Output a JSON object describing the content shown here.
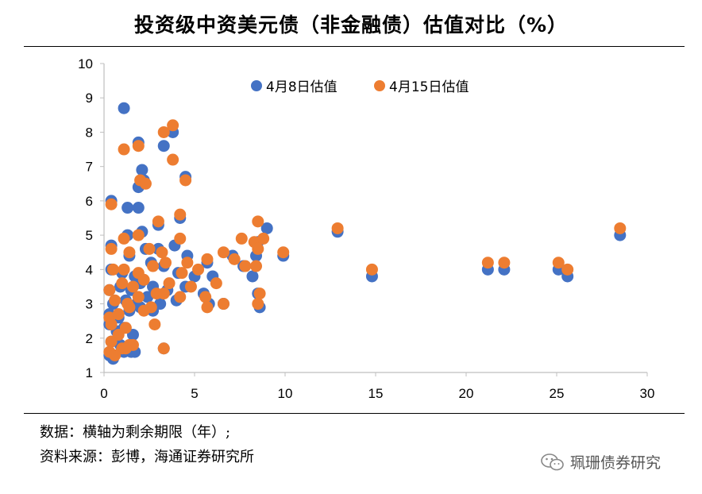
{
  "title": "投资级中资美元债（非金融债）估值对比（%）",
  "notes": {
    "data_note": "数据：横轴为剩余期限（年）;",
    "source_note": "资料来源：彭博，海通证券研究所"
  },
  "watermark": {
    "text": "珮珊债券研究",
    "icon": "wechat-icon"
  },
  "chart_data": {
    "type": "scatter",
    "title": "投资级中资美元债（非金融债）估值对比（%）",
    "xlim": [
      0,
      30
    ],
    "ylim": [
      1,
      10
    ],
    "x_ticks": [
      "0",
      "5",
      "10",
      "15",
      "20",
      "25",
      "30"
    ],
    "y_ticks": [
      "1",
      "2",
      "3",
      "4",
      "5",
      "6",
      "7",
      "8",
      "9",
      "10"
    ],
    "grid": false,
    "legend_position": "top",
    "series": [
      {
        "name": "4月8日估值",
        "color": "#4472C4",
        "points": [
          [
            1.1,
            8.7
          ],
          [
            3.8,
            8.0
          ],
          [
            3.3,
            7.6
          ],
          [
            1.9,
            7.7
          ],
          [
            2.1,
            6.9
          ],
          [
            2.2,
            6.6
          ],
          [
            1.9,
            6.4
          ],
          [
            4.5,
            6.7
          ],
          [
            0.4,
            6.0
          ],
          [
            1.3,
            5.8
          ],
          [
            1.9,
            5.8
          ],
          [
            4.2,
            5.5
          ],
          [
            3.0,
            5.3
          ],
          [
            1.3,
            5.0
          ],
          [
            2.1,
            5.1
          ],
          [
            0.4,
            4.7
          ],
          [
            1.4,
            4.4
          ],
          [
            2.3,
            4.6
          ],
          [
            3.0,
            4.6
          ],
          [
            3.9,
            4.7
          ],
          [
            4.6,
            4.4
          ],
          [
            5.7,
            4.2
          ],
          [
            0.4,
            4.0
          ],
          [
            1.0,
            3.9
          ],
          [
            1.7,
            3.8
          ],
          [
            2.6,
            4.2
          ],
          [
            3.3,
            4.1
          ],
          [
            4.1,
            3.9
          ],
          [
            5.0,
            3.8
          ],
          [
            6.0,
            3.8
          ],
          [
            0.3,
            3.4
          ],
          [
            0.9,
            3.5
          ],
          [
            1.5,
            3.4
          ],
          [
            2.0,
            3.6
          ],
          [
            2.7,
            3.5
          ],
          [
            3.5,
            3.4
          ],
          [
            4.5,
            3.5
          ],
          [
            5.5,
            3.3
          ],
          [
            0.5,
            3.0
          ],
          [
            1.2,
            3.1
          ],
          [
            1.8,
            3.0
          ],
          [
            2.4,
            3.2
          ],
          [
            3.1,
            3.0
          ],
          [
            4.0,
            3.1
          ],
          [
            5.8,
            3.0
          ],
          [
            0.3,
            2.7
          ],
          [
            0.8,
            2.6
          ],
          [
            1.4,
            2.8
          ],
          [
            2.0,
            2.9
          ],
          [
            2.7,
            2.8
          ],
          [
            0.3,
            2.4
          ],
          [
            0.7,
            2.2
          ],
          [
            1.1,
            2.3
          ],
          [
            1.6,
            2.1
          ],
          [
            0.4,
            1.9
          ],
          [
            0.9,
            1.8
          ],
          [
            1.5,
            1.6
          ],
          [
            0.3,
            1.5
          ],
          [
            0.5,
            1.4
          ],
          [
            1.1,
            1.6
          ],
          [
            1.7,
            1.6
          ],
          [
            3.3,
            1.7
          ],
          [
            7.7,
            4.1
          ],
          [
            7.1,
            4.4
          ],
          [
            8.5,
            4.8
          ],
          [
            9.0,
            5.2
          ],
          [
            8.4,
            4.4
          ],
          [
            8.2,
            3.8
          ],
          [
            8.6,
            2.9
          ],
          [
            8.5,
            3.3
          ],
          [
            6.6,
            3.0
          ],
          [
            9.9,
            4.4
          ],
          [
            12.9,
            5.1
          ],
          [
            14.8,
            3.8
          ],
          [
            21.2,
            4.0
          ],
          [
            22.1,
            4.0
          ],
          [
            25.1,
            4.0
          ],
          [
            25.6,
            3.8
          ],
          [
            28.5,
            5.0
          ]
        ]
      },
      {
        "name": "4月15日估值",
        "color": "#ED7D31",
        "points": [
          [
            3.8,
            8.2
          ],
          [
            3.3,
            8.0
          ],
          [
            1.1,
            7.5
          ],
          [
            1.9,
            7.6
          ],
          [
            3.8,
            7.2
          ],
          [
            2.0,
            6.6
          ],
          [
            2.3,
            6.5
          ],
          [
            4.5,
            6.6
          ],
          [
            0.4,
            5.9
          ],
          [
            4.2,
            5.6
          ],
          [
            3.0,
            5.4
          ],
          [
            1.1,
            4.9
          ],
          [
            1.9,
            5.0
          ],
          [
            0.4,
            4.6
          ],
          [
            1.4,
            4.5
          ],
          [
            2.5,
            4.6
          ],
          [
            3.2,
            4.5
          ],
          [
            4.2,
            4.9
          ],
          [
            4.6,
            4.2
          ],
          [
            5.7,
            4.3
          ],
          [
            6.6,
            4.5
          ],
          [
            7.2,
            4.3
          ],
          [
            0.5,
            4.0
          ],
          [
            1.1,
            4.0
          ],
          [
            1.9,
            3.9
          ],
          [
            2.7,
            4.1
          ],
          [
            3.4,
            4.2
          ],
          [
            4.3,
            3.9
          ],
          [
            5.2,
            4.0
          ],
          [
            6.2,
            3.6
          ],
          [
            0.3,
            3.4
          ],
          [
            1.0,
            3.6
          ],
          [
            1.6,
            3.5
          ],
          [
            2.2,
            3.7
          ],
          [
            2.9,
            3.3
          ],
          [
            3.6,
            3.6
          ],
          [
            4.8,
            3.5
          ],
          [
            5.6,
            3.2
          ],
          [
            0.6,
            3.1
          ],
          [
            1.3,
            3.0
          ],
          [
            1.9,
            3.2
          ],
          [
            2.6,
            2.9
          ],
          [
            3.3,
            3.3
          ],
          [
            4.2,
            3.2
          ],
          [
            5.7,
            2.9
          ],
          [
            0.3,
            2.6
          ],
          [
            0.8,
            2.7
          ],
          [
            1.4,
            2.9
          ],
          [
            2.2,
            2.8
          ],
          [
            2.8,
            2.4
          ],
          [
            0.4,
            2.4
          ],
          [
            0.8,
            2.1
          ],
          [
            1.2,
            2.3
          ],
          [
            1.6,
            1.8
          ],
          [
            0.4,
            1.9
          ],
          [
            1.0,
            1.7
          ],
          [
            1.4,
            1.8
          ],
          [
            0.3,
            1.6
          ],
          [
            0.6,
            1.5
          ],
          [
            1.2,
            1.7
          ],
          [
            3.3,
            1.7
          ],
          [
            7.8,
            4.1
          ],
          [
            7.6,
            4.9
          ],
          [
            8.3,
            4.8
          ],
          [
            8.8,
            4.9
          ],
          [
            8.5,
            5.4
          ],
          [
            8.5,
            4.6
          ],
          [
            8.4,
            4.1
          ],
          [
            8.6,
            3.3
          ],
          [
            8.5,
            3.0
          ],
          [
            6.6,
            3.0
          ],
          [
            9.9,
            4.5
          ],
          [
            12.9,
            5.2
          ],
          [
            14.8,
            4.0
          ],
          [
            21.2,
            4.2
          ],
          [
            22.1,
            4.2
          ],
          [
            25.1,
            4.2
          ],
          [
            25.6,
            4.0
          ],
          [
            28.5,
            5.2
          ]
        ]
      }
    ]
  }
}
